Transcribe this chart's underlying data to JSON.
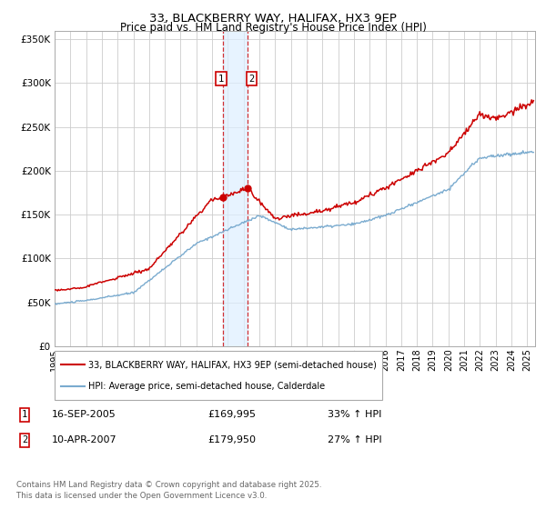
{
  "title": "33, BLACKBERRY WAY, HALIFAX, HX3 9EP",
  "subtitle": "Price paid vs. HM Land Registry's House Price Index (HPI)",
  "legend_label_red": "33, BLACKBERRY WAY, HALIFAX, HX3 9EP (semi-detached house)",
  "legend_label_blue": "HPI: Average price, semi-detached house, Calderdale",
  "transaction1": {
    "label": "1",
    "date": "16-SEP-2005",
    "price": "£169,995",
    "hpi": "33% ↑ HPI"
  },
  "transaction2": {
    "label": "2",
    "date": "10-APR-2007",
    "price": "£179,950",
    "hpi": "27% ↑ HPI"
  },
  "footnote": "Contains HM Land Registry data © Crown copyright and database right 2025.\nThis data is licensed under the Open Government Licence v3.0.",
  "vline1_x": 2005.71,
  "vline2_x": 2007.27,
  "ylim": [
    0,
    360000
  ],
  "xlim_start": 1995,
  "xlim_end": 2025.5,
  "red_color": "#cc0000",
  "blue_color": "#7aabcf",
  "vline_color": "#cc0000",
  "background_color": "#ffffff",
  "shade_color": "#ddeeff",
  "grid_color": "#cccccc",
  "sale1_y": 169995,
  "sale2_y": 179950
}
